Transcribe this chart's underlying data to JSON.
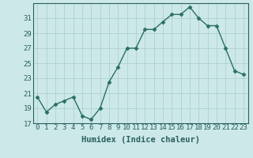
{
  "x": [
    0,
    1,
    2,
    3,
    4,
    5,
    6,
    7,
    8,
    9,
    10,
    11,
    12,
    13,
    14,
    15,
    16,
    17,
    18,
    19,
    20,
    21,
    22,
    23
  ],
  "y": [
    20.5,
    18.5,
    19.5,
    20.0,
    20.5,
    18.0,
    17.5,
    19.0,
    22.5,
    24.5,
    27.0,
    27.0,
    29.5,
    29.5,
    30.5,
    31.5,
    31.5,
    32.5,
    31.0,
    30.0,
    30.0,
    27.0,
    24.0,
    23.5
  ],
  "line_color": "#2a7060",
  "marker": "D",
  "marker_size": 2.5,
  "bg_color": "#cce8e8",
  "grid_color": "#aacccc",
  "xlabel": "Humidex (Indice chaleur)",
  "xlim": [
    -0.5,
    23.5
  ],
  "ylim": [
    17,
    33
  ],
  "yticks": [
    17,
    19,
    21,
    23,
    25,
    27,
    29,
    31
  ],
  "xticks": [
    0,
    1,
    2,
    3,
    4,
    5,
    6,
    7,
    8,
    9,
    10,
    11,
    12,
    13,
    14,
    15,
    16,
    17,
    18,
    19,
    20,
    21,
    22,
    23
  ],
  "xtick_labels": [
    "0",
    "1",
    "2",
    "3",
    "4",
    "5",
    "6",
    "7",
    "8",
    "9",
    "10",
    "11",
    "12",
    "13",
    "14",
    "15",
    "16",
    "17",
    "18",
    "19",
    "20",
    "21",
    "22",
    "23"
  ],
  "font_color": "#2a6060",
  "xlabel_fontsize": 7.5,
  "tick_fontsize": 6.5,
  "linewidth": 1.0
}
